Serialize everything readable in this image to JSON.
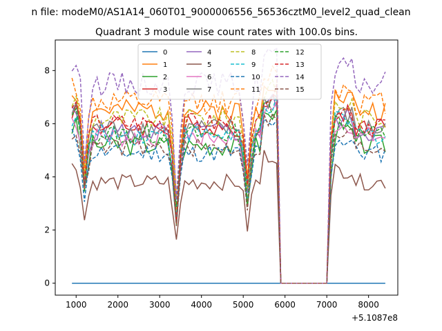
{
  "chart_data": {
    "type": "line",
    "suptitle": "n file: modeM0/AS1A14_060T01_9000006556_56536cztM0_level2_quad_clean",
    "title": "Quadrant 3 module wise count rates with 100.0s bins.",
    "xlabel": "",
    "ylabel": "",
    "x_offset_label": "+5.1087e8",
    "xlim": [
      500,
      8700
    ],
    "ylim": [
      -0.45,
      9.15
    ],
    "x_ticks": [
      1000,
      2000,
      3000,
      4000,
      5000,
      6000,
      7000,
      8000
    ],
    "x_tick_labels": [
      "1000",
      "2000",
      "3000",
      "4000",
      "5000",
      "6000",
      "7000",
      "8000"
    ],
    "y_ticks": [
      0,
      2,
      4,
      6,
      8
    ],
    "y_tick_labels": [
      "0",
      "2",
      "4",
      "6",
      "8"
    ],
    "x_range": {
      "start": 900,
      "step": 100,
      "end": 8400
    },
    "gap": {
      "start": 5900,
      "end": 7000,
      "value": 0
    },
    "series": [
      {
        "name": "0",
        "color": "#1f77b4",
        "style": "solid",
        "level": 0,
        "var": 0,
        "dip": 0
      },
      {
        "name": "1",
        "color": "#ff7f0e",
        "style": "solid",
        "level": 6.5,
        "var": 0.4,
        "dip": 2.0
      },
      {
        "name": "2",
        "color": "#2ca02c",
        "style": "solid",
        "level": 5.2,
        "var": 0.4,
        "dip": 1.6
      },
      {
        "name": "3",
        "color": "#d62728",
        "style": "solid",
        "level": 5.9,
        "var": 0.4,
        "dip": 1.8
      },
      {
        "name": "4",
        "color": "#9467bd",
        "style": "solid",
        "level": 5.7,
        "var": 0.4,
        "dip": 1.8
      },
      {
        "name": "5",
        "color": "#8c564b",
        "style": "solid",
        "level": 3.8,
        "var": 0.3,
        "dip": 1.3
      },
      {
        "name": "6",
        "color": "#e377c2",
        "style": "solid",
        "level": 5.5,
        "var": 0.4,
        "dip": 1.7
      },
      {
        "name": "7",
        "color": "#7f7f7f",
        "style": "solid",
        "level": 5.8,
        "var": 0.4,
        "dip": 1.8
      },
      {
        "name": "8",
        "color": "#bcbd22",
        "style": "dashed",
        "level": 6.2,
        "var": 0.4,
        "dip": 1.9
      },
      {
        "name": "9",
        "color": "#17becf",
        "style": "dashed",
        "level": 5.6,
        "var": 0.4,
        "dip": 1.7
      },
      {
        "name": "10",
        "color": "#1f77b4",
        "style": "dashed",
        "level": 4.9,
        "var": 0.35,
        "dip": 1.5
      },
      {
        "name": "11",
        "color": "#ff7f0e",
        "style": "dashed",
        "level": 6.8,
        "var": 0.45,
        "dip": 2.1
      },
      {
        "name": "12",
        "color": "#2ca02c",
        "style": "dashed",
        "level": 5.6,
        "var": 0.4,
        "dip": 1.7
      },
      {
        "name": "13",
        "color": "#d62728",
        "style": "dashed",
        "level": 6.0,
        "var": 0.4,
        "dip": 1.9
      },
      {
        "name": "14",
        "color": "#9467bd",
        "style": "dashed",
        "level": 7.5,
        "var": 0.45,
        "dip": 2.3
      },
      {
        "name": "15",
        "color": "#8c564b",
        "style": "dashed",
        "level": 5.1,
        "var": 0.35,
        "dip": 1.6
      }
    ]
  }
}
